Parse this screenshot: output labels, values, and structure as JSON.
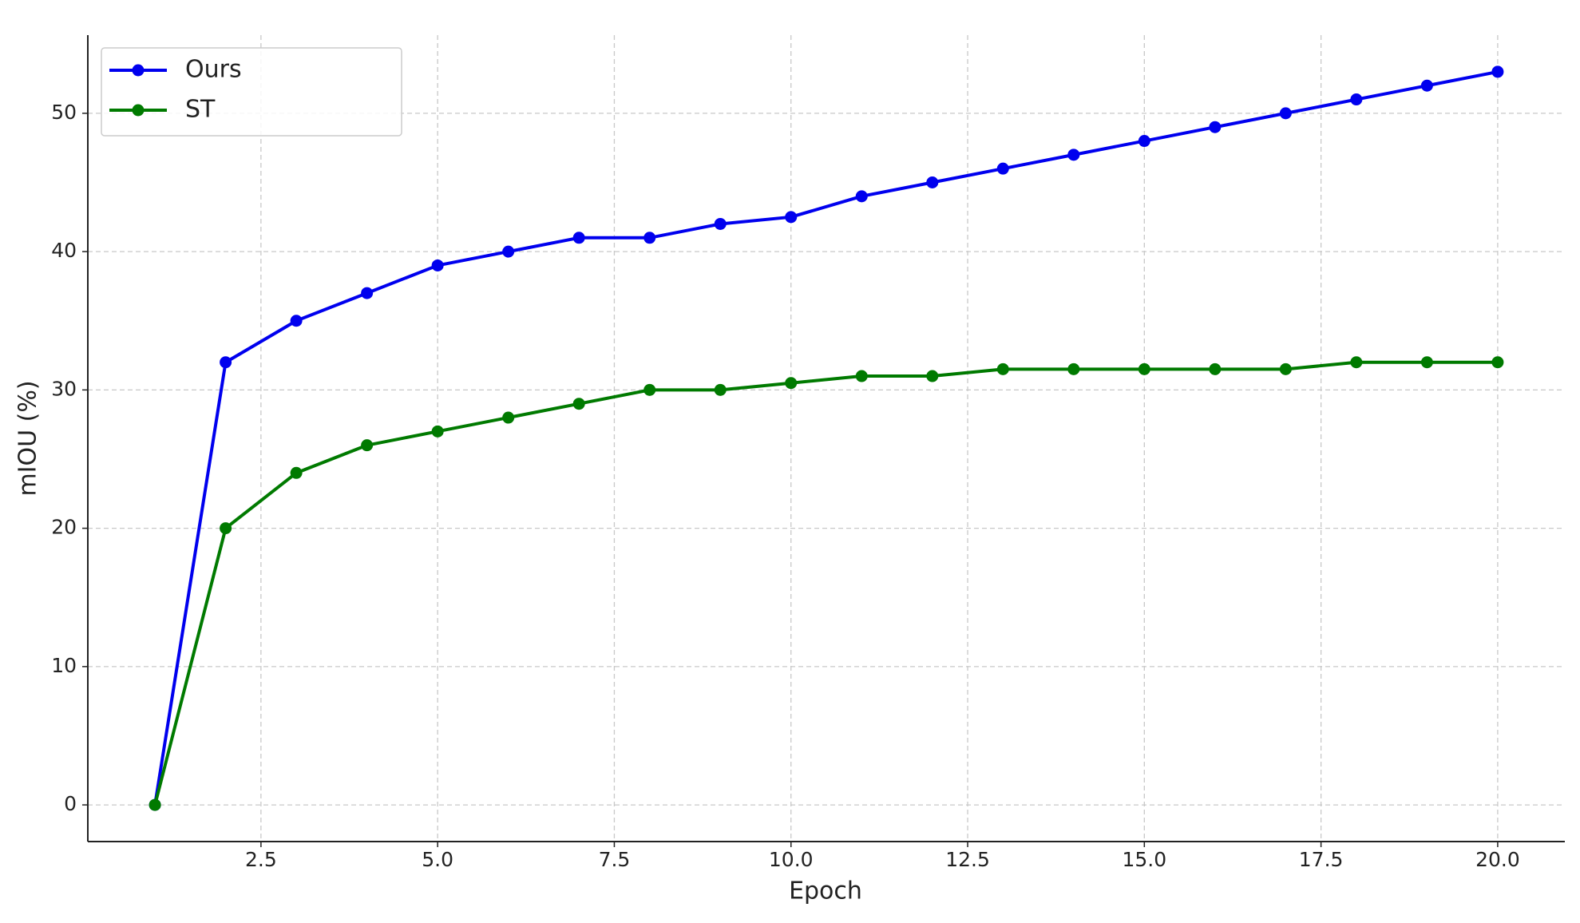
{
  "chart_data": {
    "type": "line",
    "x": [
      1,
      2,
      3,
      4,
      5,
      6,
      7,
      8,
      9,
      10,
      11,
      12,
      13,
      14,
      15,
      16,
      17,
      18,
      19,
      20
    ],
    "series": [
      {
        "name": "Ours",
        "color": "#0000ee",
        "values": [
          0,
          32,
          35,
          37,
          39,
          40,
          41,
          41,
          42,
          42.5,
          44,
          45,
          46,
          47,
          48,
          49,
          50,
          51,
          52,
          53
        ]
      },
      {
        "name": "ST",
        "color": "#007a00",
        "values": [
          0,
          20,
          24,
          26,
          27,
          28,
          29,
          30,
          30,
          30.5,
          31,
          31,
          31.5,
          31.5,
          31.5,
          31.5,
          31.5,
          32,
          32,
          32
        ]
      }
    ],
    "x_label": "Epoch",
    "y_label": "mIOU (%)",
    "xlim": [
      0.05,
      20.95
    ],
    "ylim": [
      -2.65,
      55.65
    ],
    "xticks": [
      2.5,
      {
        "value": 5,
        "label": "5.0"
      },
      7.5,
      {
        "value": 10,
        "label": "10.0"
      },
      12.5,
      {
        "value": 15,
        "label": "15.0"
      },
      17.5,
      {
        "value": 20,
        "label": "20.0"
      }
    ],
    "yticks": [
      0,
      10,
      20,
      30,
      40,
      50
    ],
    "grid": true,
    "legend": "upper-left"
  }
}
